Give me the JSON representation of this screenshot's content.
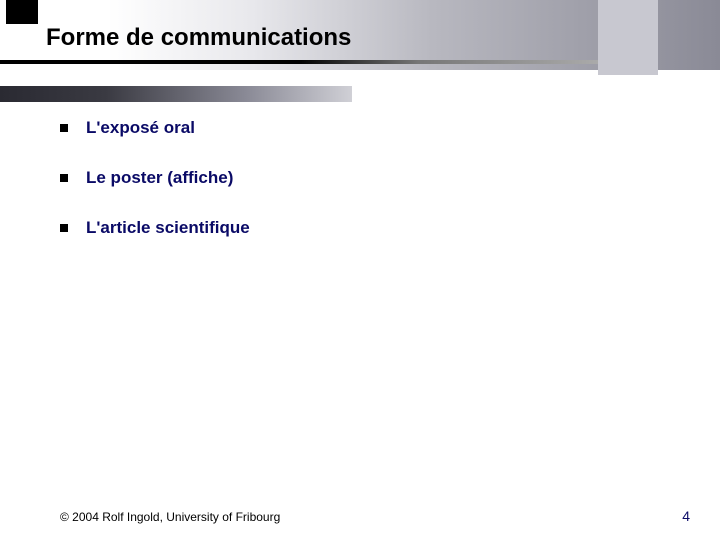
{
  "title": "Forme de communications",
  "bullets": [
    "L'exposé oral",
    "Le poster (affiche)",
    "L'article scientifique"
  ],
  "footer": {
    "copyright": "© 2004  Rolf Ingold, University of Fribourg",
    "page": "4"
  },
  "colors": {
    "bullet_text": "#0a0a66",
    "title_text": "#000000",
    "page_num": "#0a0a66"
  }
}
